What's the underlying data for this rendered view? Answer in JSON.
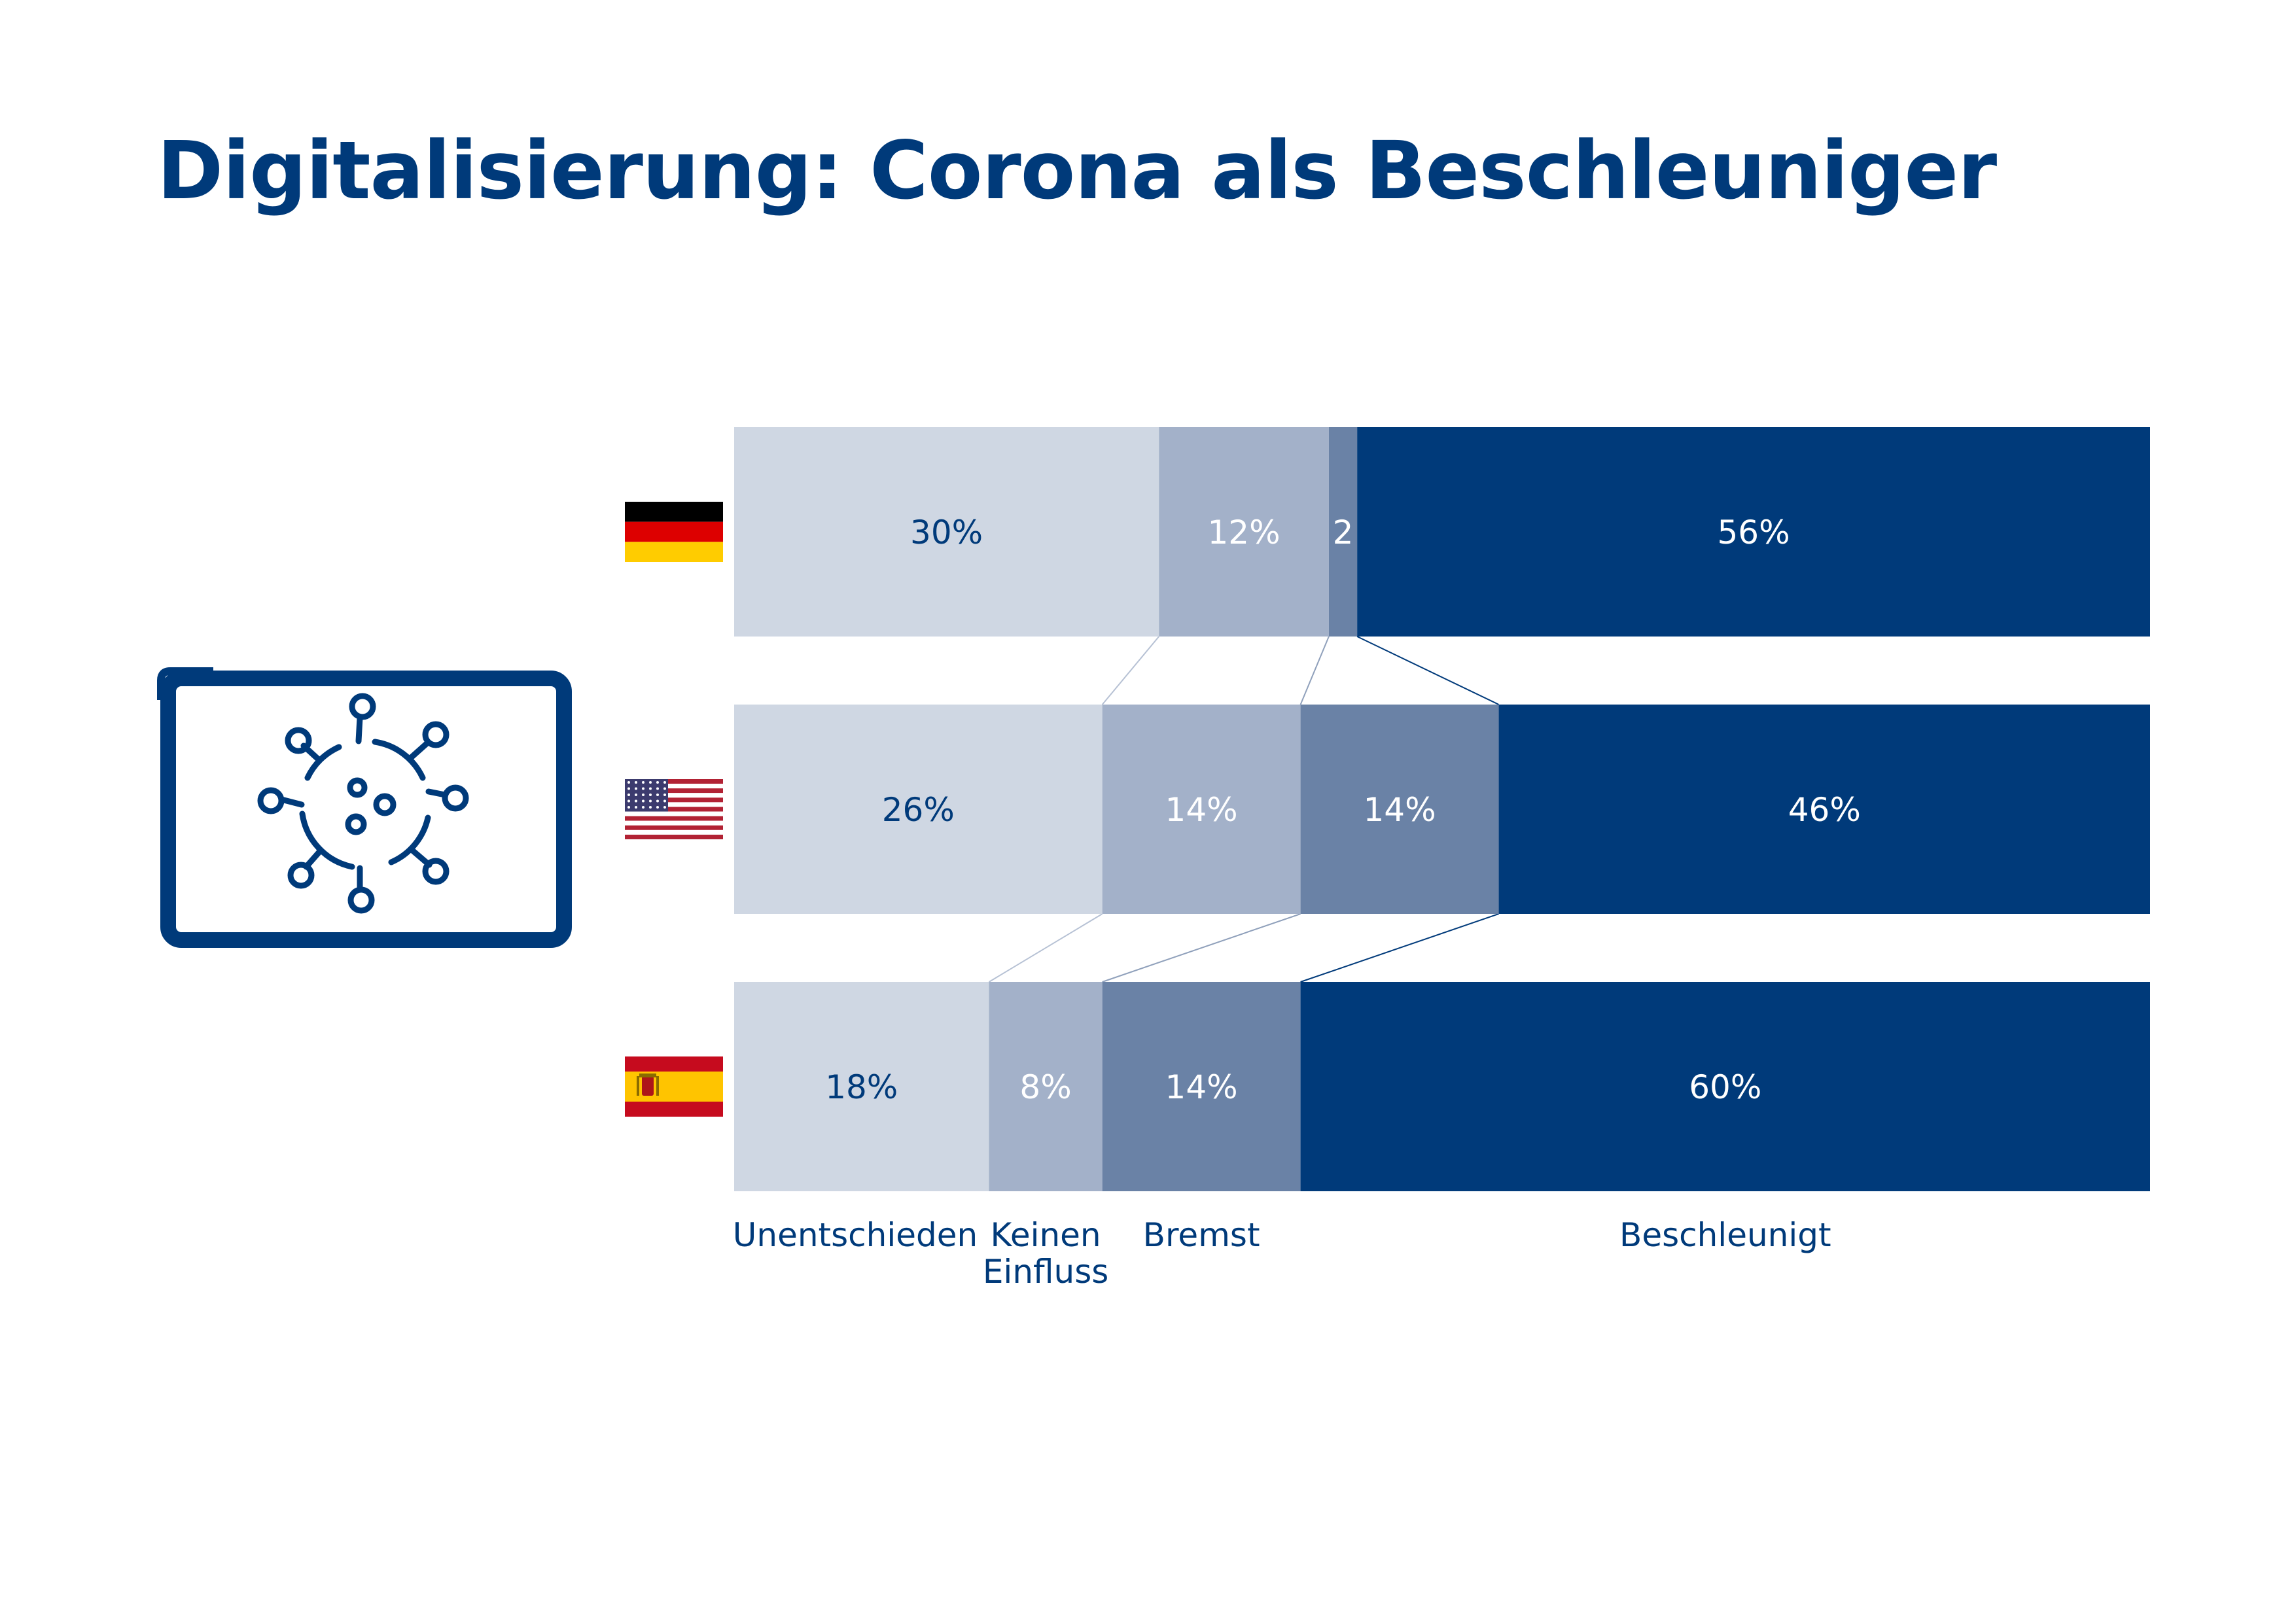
{
  "title": "Digitalisierung: Corona als Beschleuniger",
  "colors": {
    "brand": "#003a7a",
    "segments": [
      "#cfd7e3",
      "#a3b1c9",
      "#6a82a6",
      "#003a7a"
    ],
    "segment_text": [
      "#003a7a",
      "#ffffff",
      "#ffffff",
      "#ffffff"
    ]
  },
  "icons": {
    "badge": "virus-icon",
    "rows": [
      "flag-germany-icon",
      "flag-usa-icon",
      "flag-spain-icon"
    ]
  },
  "chart_data": {
    "type": "bar",
    "orientation": "horizontal",
    "stacked": true,
    "percent": true,
    "xlim": [
      0,
      100
    ],
    "categories": [
      "flag-germany",
      "flag-usa",
      "flag-spain"
    ],
    "series": [
      {
        "name": "Unentschieden",
        "values": [
          30,
          26,
          18
        ],
        "labels": [
          "30%",
          "26%",
          "18%"
        ]
      },
      {
        "name": "Keinen Einfluss",
        "values": [
          12,
          14,
          8
        ],
        "labels": [
          "12%",
          "14%",
          "8%"
        ]
      },
      {
        "name": "Bremst",
        "values": [
          2,
          14,
          14
        ],
        "labels": [
          "2",
          "14%",
          "14%"
        ]
      },
      {
        "name": "Beschleunigt",
        "values": [
          56,
          46,
          60
        ],
        "labels": [
          "56%",
          "46%",
          "60%"
        ]
      }
    ],
    "category_labels": [
      {
        "lines": [
          "Unentschieden"
        ]
      },
      {
        "lines": [
          "Keinen",
          "Einfluss"
        ]
      },
      {
        "lines": [
          "Bremst"
        ]
      },
      {
        "lines": [
          "Beschleunigt"
        ]
      }
    ],
    "connectors": true
  }
}
